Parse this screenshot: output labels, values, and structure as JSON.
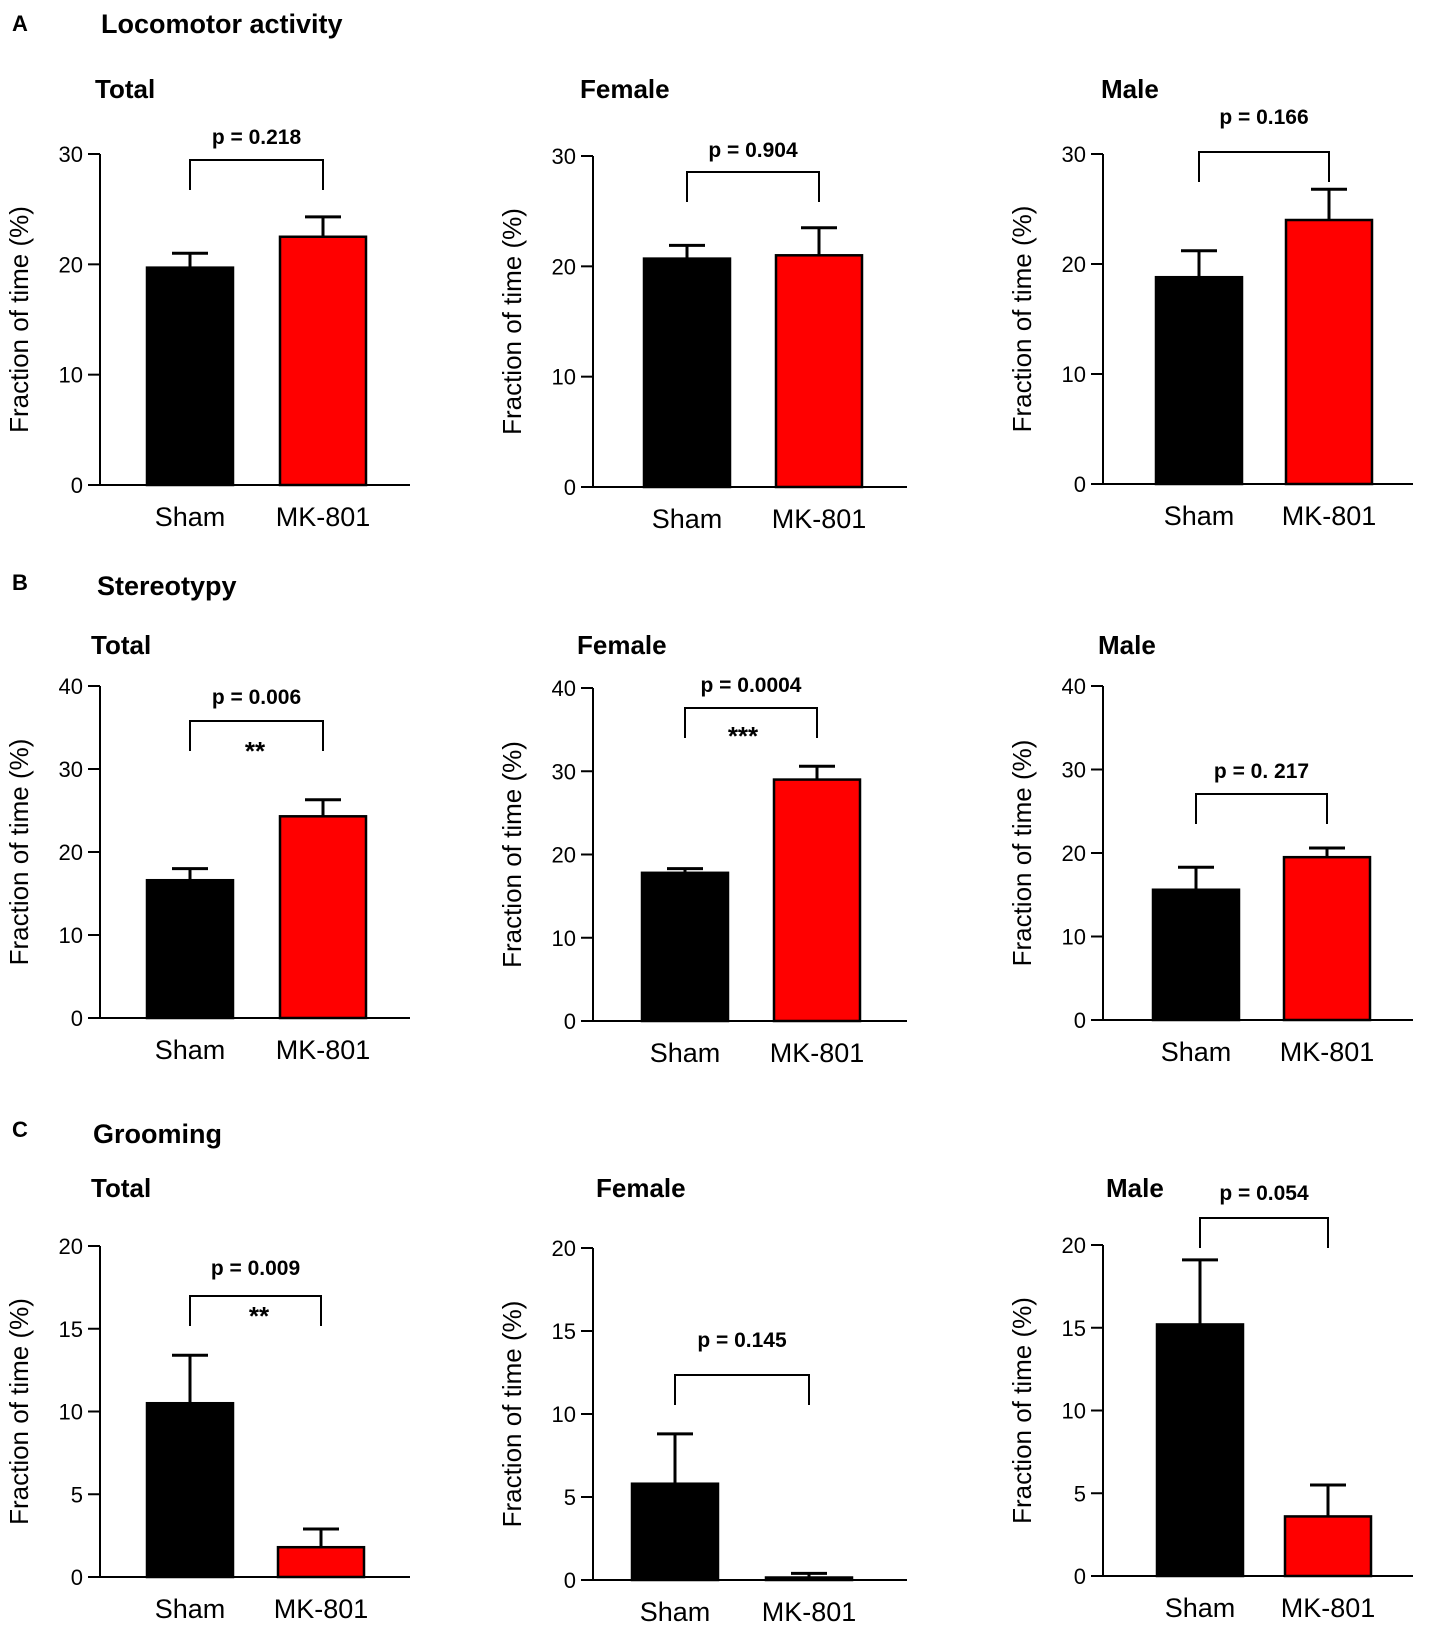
{
  "panels": [
    {
      "letter": "A",
      "title": "Locomotor activity"
    },
    {
      "letter": "B",
      "title": "Stereotypy"
    },
    {
      "letter": "C",
      "title": "Grooming"
    }
  ],
  "colors": {
    "sham": "#000000",
    "mk801": "#ff0000",
    "axis": "#000000"
  },
  "chart_data": [
    {
      "panel": "A",
      "type": "bar",
      "title": "Total",
      "ylabel": "Fraction of time (%)",
      "categories": [
        "Sham",
        "MK-801"
      ],
      "values": [
        19.7,
        22.5
      ],
      "errors": [
        1.3,
        1.8
      ],
      "ylim": [
        0,
        30
      ],
      "yticks": [
        0,
        10,
        20,
        30
      ],
      "pvalue": "p = 0.218",
      "stars": ""
    },
    {
      "panel": "A",
      "type": "bar",
      "title": "Female",
      "ylabel": "Fraction of time (%)",
      "categories": [
        "Sham",
        "MK-801"
      ],
      "values": [
        20.7,
        21.0
      ],
      "errors": [
        1.2,
        2.5
      ],
      "ylim": [
        0,
        30
      ],
      "yticks": [
        0,
        10,
        20,
        30
      ],
      "pvalue": "p = 0.904",
      "stars": ""
    },
    {
      "panel": "A",
      "type": "bar",
      "title": "Male",
      "ylabel": "Fraction of time (%)",
      "categories": [
        "Sham",
        "MK-801"
      ],
      "values": [
        18.8,
        24.0
      ],
      "errors": [
        2.4,
        2.8
      ],
      "ylim": [
        0,
        30
      ],
      "yticks": [
        0,
        10,
        20,
        30
      ],
      "pvalue": "p = 0.166",
      "stars": ""
    },
    {
      "panel": "B",
      "type": "bar",
      "title": "Total",
      "ylabel": "Fraction of time (%)",
      "categories": [
        "Sham",
        "MK-801"
      ],
      "values": [
        16.6,
        24.3
      ],
      "errors": [
        1.4,
        2.0
      ],
      "ylim": [
        0,
        40
      ],
      "yticks": [
        0,
        10,
        20,
        30,
        40
      ],
      "pvalue": "p = 0.006",
      "stars": "**"
    },
    {
      "panel": "B",
      "type": "bar",
      "title": "Female",
      "ylabel": "Fraction of time (%)",
      "categories": [
        "Sham",
        "MK-801"
      ],
      "values": [
        17.8,
        29.0
      ],
      "errors": [
        0.5,
        1.6
      ],
      "ylim": [
        0,
        40
      ],
      "yticks": [
        0,
        10,
        20,
        30,
        40
      ],
      "pvalue": "p = 0.0004",
      "stars": "***"
    },
    {
      "panel": "B",
      "type": "bar",
      "title": "Male",
      "ylabel": "Fraction of time (%)",
      "categories": [
        "Sham",
        "MK-801"
      ],
      "values": [
        15.6,
        19.5
      ],
      "errors": [
        2.7,
        1.1
      ],
      "ylim": [
        0,
        40
      ],
      "yticks": [
        0,
        10,
        20,
        30,
        40
      ],
      "pvalue": "p = 0. 217",
      "stars": ""
    },
    {
      "panel": "C",
      "type": "bar",
      "title": "Total",
      "ylabel": "Fraction of time (%)",
      "categories": [
        "Sham",
        "MK-801"
      ],
      "values": [
        10.5,
        1.8
      ],
      "errors": [
        2.9,
        1.1
      ],
      "ylim": [
        0,
        20
      ],
      "yticks": [
        0,
        5,
        10,
        15,
        20
      ],
      "pvalue": "p = 0.009",
      "stars": "**"
    },
    {
      "panel": "C",
      "type": "bar",
      "title": "Female",
      "ylabel": "Fraction of time (%)",
      "categories": [
        "Sham",
        "MK-801"
      ],
      "values": [
        5.8,
        0.15
      ],
      "errors": [
        3.0,
        0.25
      ],
      "ylim": [
        0,
        20
      ],
      "yticks": [
        0,
        5,
        10,
        15,
        20
      ],
      "pvalue": "p = 0.145",
      "stars": ""
    },
    {
      "panel": "C",
      "type": "bar",
      "title": "Male",
      "ylabel": "Fraction of time (%)",
      "categories": [
        "Sham",
        "MK-801"
      ],
      "values": [
        15.2,
        3.6
      ],
      "errors": [
        3.9,
        1.9
      ],
      "ylim": [
        0,
        20
      ],
      "yticks": [
        0,
        5,
        10,
        15,
        20
      ],
      "pvalue": "p = 0.054",
      "stars": ""
    }
  ]
}
